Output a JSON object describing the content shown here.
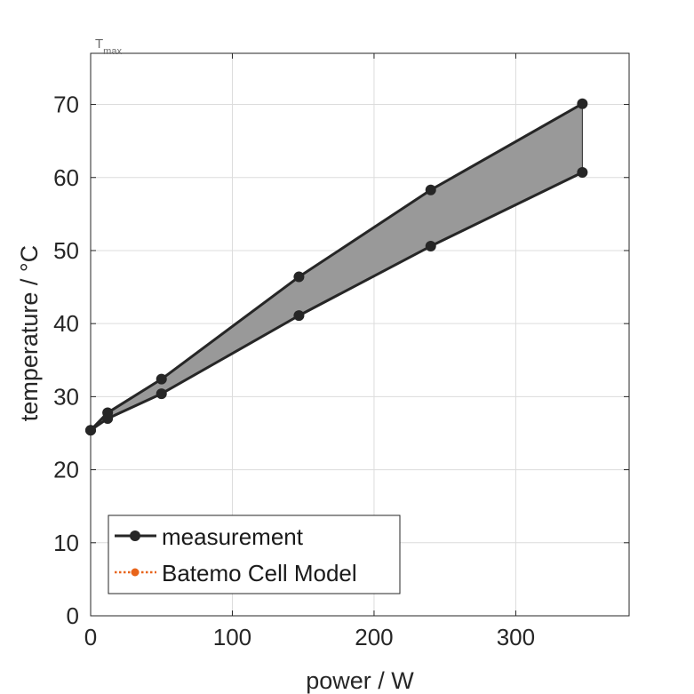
{
  "chart_data": {
    "type": "line",
    "corner_label": "T",
    "corner_label_sub": "max",
    "xlabel": "power / W",
    "ylabel": "temperature / °C",
    "xlim": [
      0,
      380
    ],
    "ylim": [
      0,
      77
    ],
    "xticks": [
      0,
      100,
      200,
      300
    ],
    "yticks": [
      0,
      10,
      20,
      30,
      40,
      50,
      60,
      70
    ],
    "grid": true,
    "legend_position": "bottom-left",
    "series": [
      {
        "name": "measurement",
        "color": "#262626",
        "fill_color": "#999999",
        "band_upper": {
          "x": [
            0,
            12,
            50,
            147,
            240,
            347
          ],
          "y": [
            25.4,
            27.8,
            32.4,
            46.4,
            58.3,
            70.1
          ]
        },
        "band_lower": {
          "x": [
            0,
            12,
            50,
            147,
            240,
            347
          ],
          "y": [
            25.4,
            27.0,
            30.4,
            41.1,
            50.6,
            60.7
          ]
        }
      },
      {
        "name": "Batemo Cell Model",
        "color": "#e8641a",
        "linestyle": "dotted",
        "x": [],
        "y": []
      }
    ]
  }
}
